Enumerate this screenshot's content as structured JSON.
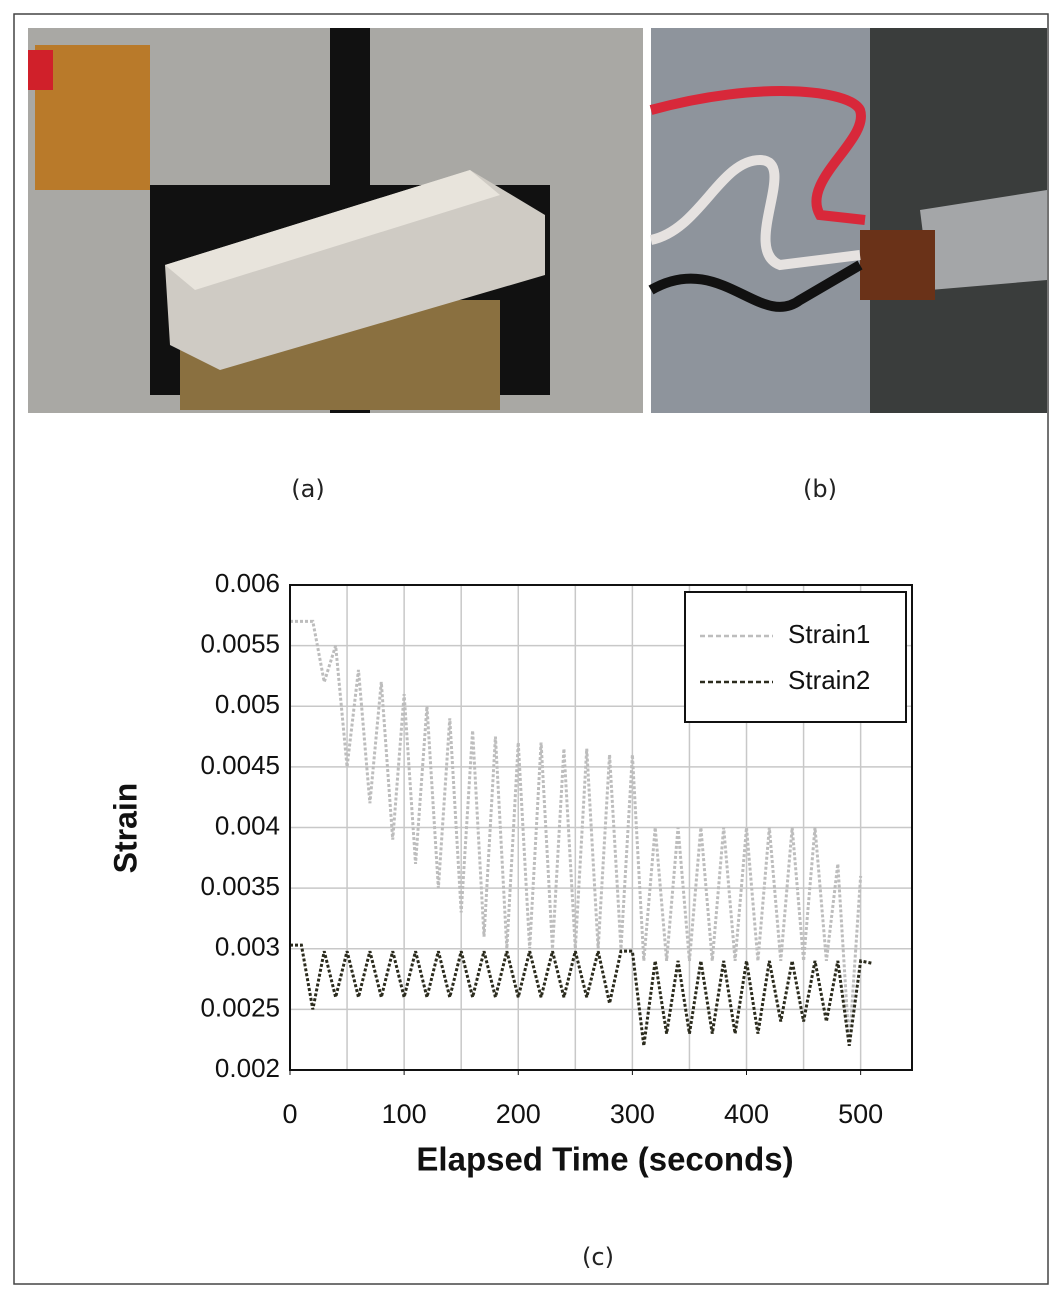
{
  "captions": {
    "a": "(a)",
    "b": "(b)",
    "c": "(c)"
  },
  "chart_data": {
    "type": "line",
    "ylabel": "Strain",
    "xlabel": "Elapsed Time (seconds)",
    "xlim": [
      0,
      545
    ],
    "ylim": [
      0.002,
      0.006
    ],
    "xticks": [
      0,
      100,
      200,
      300,
      400,
      500
    ],
    "yticks": [
      0.002,
      0.0025,
      0.003,
      0.0035,
      0.004,
      0.0045,
      0.005,
      0.0055,
      0.006
    ],
    "xgrid": [
      50,
      100,
      150,
      200,
      250,
      300,
      350,
      400,
      450,
      500
    ],
    "grid": true,
    "legend": "upper right",
    "series": [
      {
        "name": "Strain1",
        "color": "#bdbdbd",
        "x": [
          0,
          10,
          20,
          30,
          40,
          50,
          60,
          70,
          80,
          90,
          100,
          110,
          120,
          130,
          140,
          150,
          160,
          170,
          180,
          190,
          200,
          210,
          220,
          230,
          240,
          250,
          260,
          270,
          280,
          290,
          300,
          310,
          320,
          330,
          340,
          350,
          360,
          370,
          380,
          390,
          400,
          410,
          420,
          430,
          440,
          450,
          460,
          470,
          480,
          490,
          500
        ],
        "values": [
          0.0057,
          0.0057,
          0.0057,
          0.0052,
          0.0055,
          0.0045,
          0.0053,
          0.0042,
          0.0052,
          0.0039,
          0.0051,
          0.0037,
          0.005,
          0.0035,
          0.0049,
          0.0033,
          0.0048,
          0.0031,
          0.00475,
          0.003,
          0.0047,
          0.003,
          0.0047,
          0.003,
          0.00465,
          0.003,
          0.00465,
          0.003,
          0.0046,
          0.003,
          0.0046,
          0.0029,
          0.004,
          0.0029,
          0.004,
          0.0029,
          0.004,
          0.0029,
          0.004,
          0.0029,
          0.004,
          0.0029,
          0.004,
          0.0029,
          0.004,
          0.0029,
          0.004,
          0.0029,
          0.0037,
          0.0022,
          0.0036
        ]
      },
      {
        "name": "Strain2",
        "color": "#2b2b1d",
        "x": [
          0,
          10,
          20,
          30,
          40,
          50,
          60,
          70,
          80,
          90,
          100,
          110,
          120,
          130,
          140,
          150,
          160,
          170,
          180,
          190,
          200,
          210,
          220,
          230,
          240,
          250,
          260,
          270,
          280,
          290,
          300,
          310,
          320,
          330,
          340,
          350,
          360,
          370,
          380,
          390,
          400,
          410,
          420,
          430,
          440,
          450,
          460,
          470,
          480,
          490,
          500,
          510
        ],
        "values": [
          0.00303,
          0.00303,
          0.0025,
          0.00298,
          0.0026,
          0.00298,
          0.0026,
          0.00298,
          0.0026,
          0.00298,
          0.0026,
          0.00298,
          0.0026,
          0.00298,
          0.0026,
          0.00298,
          0.0026,
          0.00298,
          0.0026,
          0.00298,
          0.0026,
          0.00298,
          0.0026,
          0.00298,
          0.0026,
          0.00298,
          0.0026,
          0.00298,
          0.00255,
          0.00298,
          0.00298,
          0.0022,
          0.0029,
          0.0023,
          0.0029,
          0.0023,
          0.0029,
          0.0023,
          0.0029,
          0.0023,
          0.0029,
          0.0023,
          0.0029,
          0.0024,
          0.0029,
          0.0024,
          0.0029,
          0.0024,
          0.0029,
          0.0022,
          0.0029,
          0.00288
        ]
      }
    ]
  }
}
